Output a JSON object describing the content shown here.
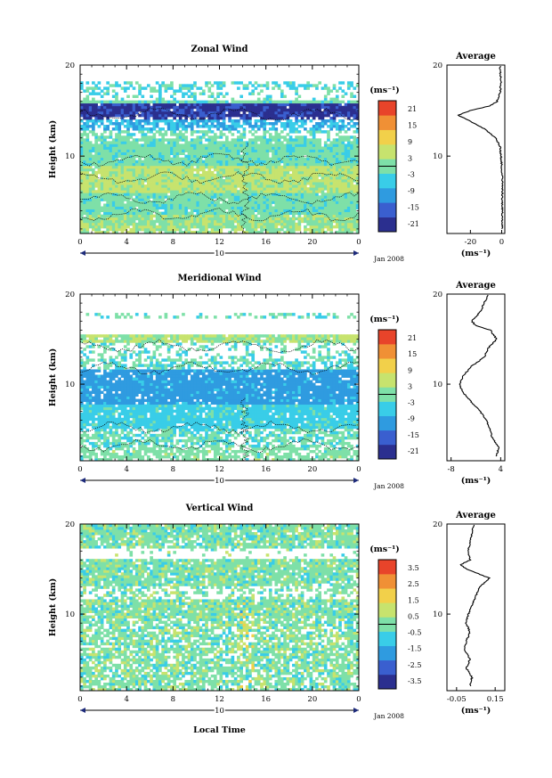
{
  "chart_data": [
    {
      "type": "heatmap",
      "title": "Zonal Wind",
      "ylabel": "Height (km)",
      "xlabel": "",
      "x_ticks": [
        "0",
        "4",
        "8",
        "12",
        "16",
        "20",
        "0"
      ],
      "y_ticks": [
        "10",
        "20"
      ],
      "xlim": [
        0,
        24
      ],
      "ylim": [
        1.5,
        20
      ],
      "day_label": "10",
      "date_label": "Jan 2008",
      "colorbar_unit": "(ms⁻¹)",
      "colorbar_ticks": [
        "21",
        "15",
        "9",
        "3",
        "-3",
        "-9",
        "-15",
        "-21"
      ],
      "colorbar_range": [
        -24,
        24
      ],
      "average": {
        "title": "Average",
        "xlabel": "(ms⁻¹)",
        "x_ticks": [
          "-20",
          "0"
        ],
        "xlim": [
          -35,
          2
        ],
        "y_ticks": [
          "10",
          "20"
        ],
        "height_km": [
          2,
          3,
          4,
          5,
          6,
          7,
          8,
          9,
          10,
          11,
          12,
          13,
          14,
          14.5,
          15,
          15.5,
          16,
          17,
          18,
          19,
          20
        ],
        "value": [
          0.5,
          0.3,
          0.4,
          0.2,
          0.5,
          0.4,
          0.2,
          0.0,
          -0.5,
          -1.0,
          -4,
          -11,
          -22,
          -28,
          -20,
          -8,
          -3,
          -1,
          -0.5,
          -0.8,
          -1.0
        ]
      }
    },
    {
      "type": "heatmap",
      "title": "Meridional Wind",
      "ylabel": "Height (km)",
      "xlabel": "",
      "x_ticks": [
        "0",
        "4",
        "8",
        "12",
        "16",
        "20",
        "0"
      ],
      "y_ticks": [
        "10",
        "20"
      ],
      "xlim": [
        0,
        24
      ],
      "ylim": [
        1.5,
        20
      ],
      "day_label": "10",
      "date_label": "Jan 2008",
      "colorbar_unit": "(ms⁻¹)",
      "colorbar_ticks": [
        "21",
        "15",
        "9",
        "3",
        "-3",
        "-9",
        "-15",
        "-21"
      ],
      "colorbar_range": [
        -24,
        24
      ],
      "average": {
        "title": "Average",
        "xlabel": "(ms⁻¹)",
        "x_ticks": [
          "-8",
          "4"
        ],
        "xlim": [
          -9,
          5
        ],
        "y_ticks": [
          "10",
          "20"
        ],
        "height_km": [
          2,
          3,
          4,
          5,
          6,
          7,
          8,
          9,
          10,
          11,
          12,
          13,
          14,
          15,
          16,
          16.5,
          17,
          18,
          19,
          20
        ],
        "value": [
          3,
          3.5,
          2,
          1.5,
          0.5,
          -1,
          -3,
          -5,
          -6,
          -5,
          -3,
          0,
          1,
          3,
          1.5,
          -2,
          -3,
          -1,
          0,
          1
        ]
      }
    },
    {
      "type": "heatmap",
      "title": "Vertical Wind",
      "ylabel": "Height (km)",
      "xlabel": "Local Time",
      "x_ticks": [
        "0",
        "4",
        "8",
        "12",
        "16",
        "20",
        "0"
      ],
      "y_ticks": [
        "10",
        "20"
      ],
      "xlim": [
        0,
        24
      ],
      "ylim": [
        1.5,
        20
      ],
      "day_label": "10",
      "date_label": "Jan 2008",
      "colorbar_unit": "(ms⁻¹)",
      "colorbar_ticks": [
        "3.5",
        "2.5",
        "1.5",
        "0.5",
        "-0.5",
        "-1.5",
        "-2.5",
        "-3.5"
      ],
      "colorbar_range": [
        -4,
        4
      ],
      "average": {
        "title": "Average",
        "xlabel": "(ms⁻¹)",
        "x_ticks": [
          "-0.05",
          "0.15"
        ],
        "xlim": [
          -0.1,
          0.2
        ],
        "y_ticks": [
          "10",
          "20"
        ],
        "height_km": [
          2,
          3,
          4,
          5,
          6,
          7,
          8,
          9,
          10,
          11,
          12,
          13,
          14,
          14.5,
          15,
          15.5,
          16,
          17,
          18,
          19,
          20
        ],
        "value": [
          0.02,
          0.03,
          0.0,
          0.02,
          -0.01,
          0.0,
          0.02,
          0.0,
          0.01,
          0.03,
          0.05,
          0.07,
          0.12,
          0.06,
          0.0,
          -0.03,
          0.02,
          0.01,
          0.02,
          0.03,
          0.04
        ]
      }
    }
  ],
  "colors": {
    "colorscale": [
      "#2b2f8f",
      "#3a5fcf",
      "#2f9be0",
      "#39cde8",
      "#7ee0a8",
      "#c7e36e",
      "#f2d04a",
      "#f09035",
      "#e8442a"
    ]
  }
}
